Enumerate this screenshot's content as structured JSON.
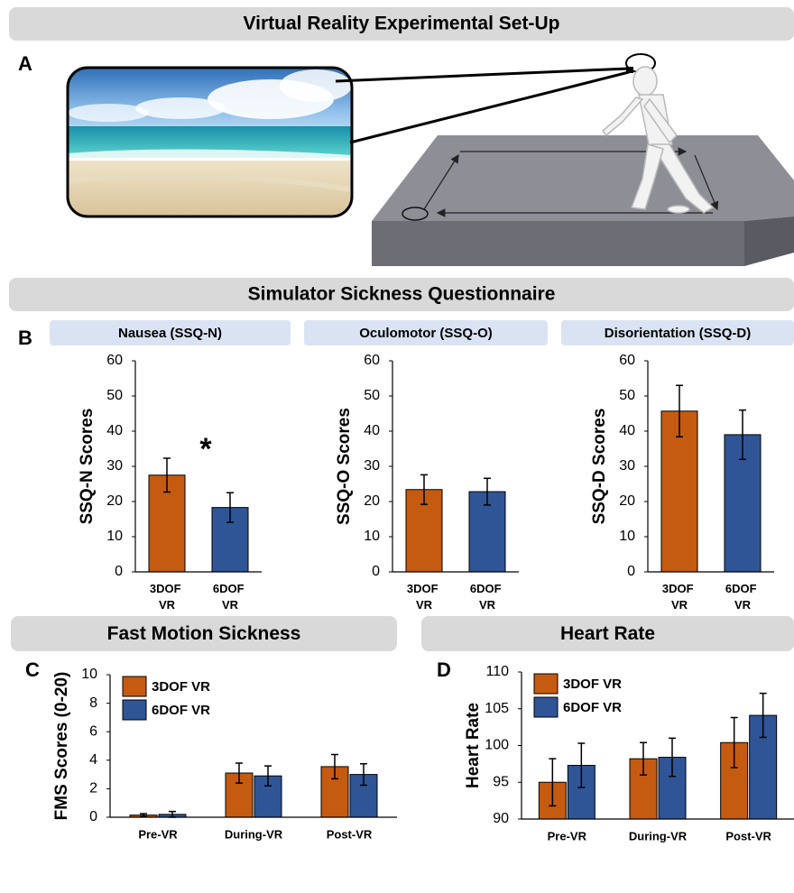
{
  "sections": [
    "Virtual Reality Experimental Set-Up",
    "Simulator Sickness Questionnaire"
  ],
  "panel_labels": [
    "A",
    "B",
    "C",
    "D"
  ],
  "chart_data": [
    {
      "type": "bar",
      "title": "Nausea (SSQ-N)",
      "y_label": "SSQ-N Scores",
      "annotation": "*",
      "categories": [
        "3DOF VR",
        "6DOF VR"
      ],
      "values": [
        27.5,
        18.3
      ],
      "errors": [
        4.8,
        4.2
      ],
      "colors": [
        "#c55a11",
        "#2f5597"
      ],
      "ylim": [
        0,
        60
      ],
      "yticks": [
        0,
        10,
        20,
        30,
        40,
        50,
        60
      ]
    },
    {
      "type": "bar",
      "title": "Oculomotor (SSQ-O)",
      "y_label": "SSQ-O Scores",
      "categories": [
        "3DOF VR",
        "6DOF VR"
      ],
      "values": [
        23.4,
        22.8
      ],
      "errors": [
        4.2,
        3.8
      ],
      "colors": [
        "#c55a11",
        "#2f5597"
      ],
      "ylim": [
        0,
        60
      ],
      "yticks": [
        0,
        10,
        20,
        30,
        40,
        50,
        60
      ]
    },
    {
      "type": "bar",
      "title": "Disorientation (SSQ-D)",
      "y_label": "SSQ-D Scores",
      "categories": [
        "3DOF VR",
        "6DOF VR"
      ],
      "values": [
        45.7,
        39.0
      ],
      "errors": [
        7.3,
        7.0
      ],
      "colors": [
        "#c55a11",
        "#2f5597"
      ],
      "ylim": [
        0,
        60
      ],
      "yticks": [
        0,
        10,
        20,
        30,
        40,
        50,
        60
      ]
    },
    {
      "type": "grouped_bar",
      "title": "Fast Motion Sickness",
      "y_label": "FMS Scores (0-20)",
      "categories": [
        "Pre-VR",
        "During-VR",
        "Post-VR"
      ],
      "series": [
        {
          "name": "3DOF VR",
          "color": "#c55a11",
          "values": [
            0.15,
            3.1,
            3.55
          ],
          "errors": [
            0.1,
            0.7,
            0.85
          ]
        },
        {
          "name": "6DOF VR",
          "color": "#2f5597",
          "values": [
            0.2,
            2.9,
            3.0
          ],
          "errors": [
            0.2,
            0.7,
            0.75
          ]
        }
      ],
      "ylim": [
        0,
        10
      ],
      "yticks": [
        0,
        2,
        4,
        6,
        8,
        10
      ],
      "legend": "upper left"
    },
    {
      "type": "grouped_bar",
      "title": "Heart Rate",
      "y_label": "Heart Rate",
      "categories": [
        "Pre-VR",
        "During-VR",
        "Post-VR"
      ],
      "series": [
        {
          "name": "3DOF VR",
          "color": "#c55a11",
          "values": [
            95.0,
            98.2,
            100.4
          ],
          "errors": [
            3.2,
            2.2,
            3.4
          ]
        },
        {
          "name": "6DOF VR",
          "color": "#2f5597",
          "values": [
            97.3,
            98.4,
            104.1
          ],
          "errors": [
            3.0,
            2.6,
            3.0
          ]
        }
      ],
      "ylim": [
        90,
        110
      ],
      "yticks": [
        90,
        95,
        100,
        105,
        110
      ],
      "legend": "upper left"
    }
  ]
}
